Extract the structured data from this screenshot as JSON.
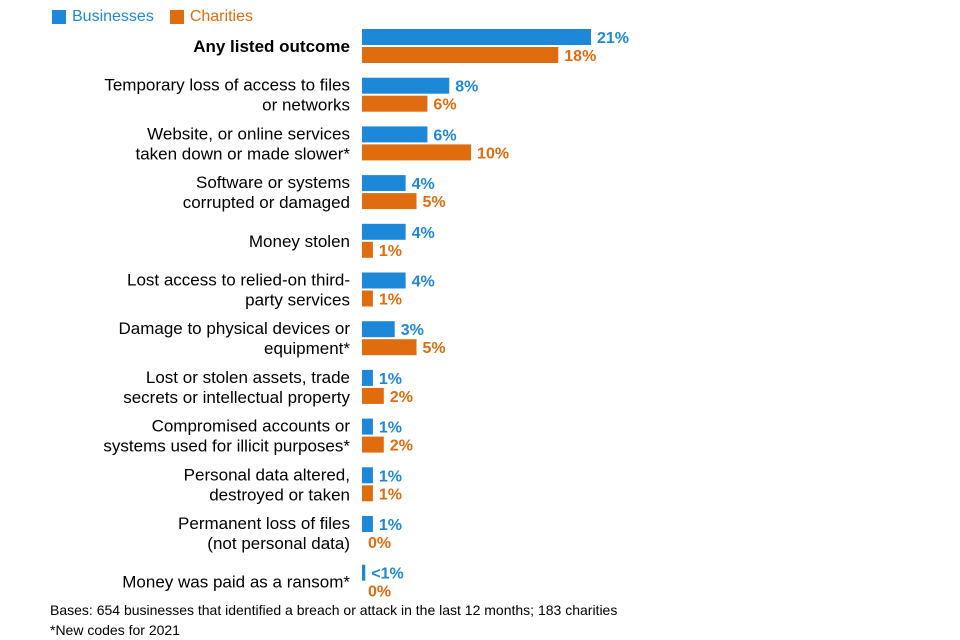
{
  "colors": {
    "businesses": "#1e88d8",
    "charities": "#e06c10"
  },
  "legend": {
    "businesses": "Businesses",
    "charities": "Charities"
  },
  "chart_data": {
    "type": "bar",
    "orientation": "horizontal",
    "title": "",
    "xlabel": "",
    "ylabel": "",
    "xlim": [
      0,
      21
    ],
    "legend_position": "top-left",
    "categories": [
      [
        "Any listed outcome"
      ],
      [
        "Temporary loss of access to files",
        "or networks"
      ],
      [
        "Website, or online services",
        "taken down or made slower*"
      ],
      [
        "Software or systems",
        "corrupted or damaged"
      ],
      [
        "Money stolen"
      ],
      [
        "Lost access to relied-on third-",
        "party services"
      ],
      [
        "Damage to physical devices or",
        "equipment*"
      ],
      [
        "Lost or stolen assets, trade",
        "secrets or intellectual property"
      ],
      [
        "Compromised accounts or",
        "systems used for illicit purposes*"
      ],
      [
        "Personal data altered,",
        "destroyed or taken"
      ],
      [
        "Permanent loss of files",
        "(not personal data)"
      ],
      [
        "Money was paid as a ransom*"
      ]
    ],
    "series": [
      {
        "name": "Businesses",
        "values": [
          21,
          8,
          6,
          4,
          4,
          4,
          3,
          1,
          1,
          1,
          1,
          0.3
        ],
        "labels": [
          "21%",
          "8%",
          "6%",
          "4%",
          "4%",
          "4%",
          "3%",
          "1%",
          "1%",
          "1%",
          "1%",
          "<1%"
        ]
      },
      {
        "name": "Charities",
        "values": [
          18,
          6,
          10,
          5,
          1,
          1,
          5,
          2,
          2,
          1,
          0,
          0
        ],
        "labels": [
          "18%",
          "6%",
          "10%",
          "5%",
          "1%",
          "1%",
          "5%",
          "2%",
          "2%",
          "1%",
          "0%",
          "0%"
        ]
      }
    ]
  },
  "footnotes": {
    "bases": "Bases: 654 businesses that identified a breach or attack in the last 12 months; 183 charities",
    "new_codes": "*New codes for 2021"
  }
}
